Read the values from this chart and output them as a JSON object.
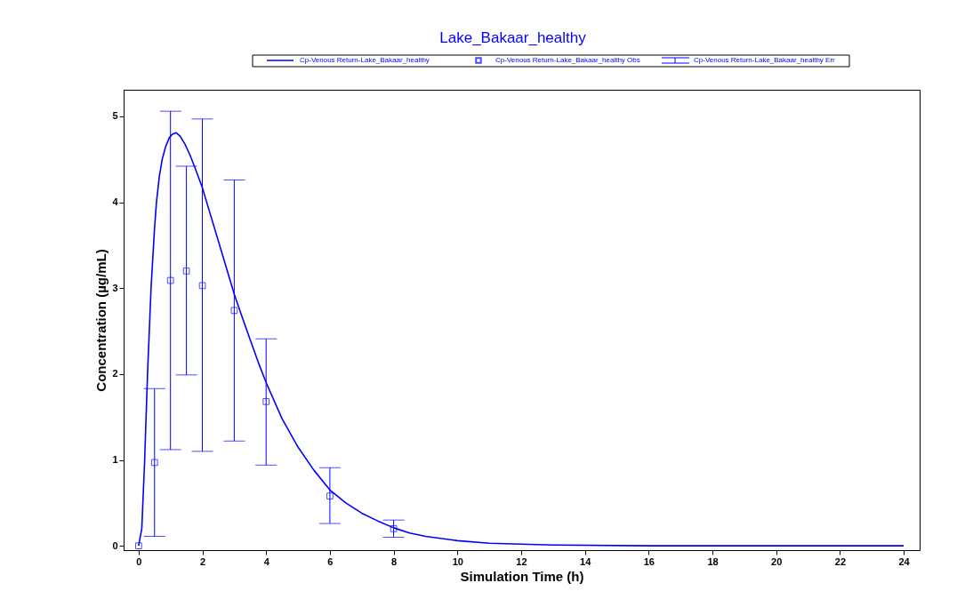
{
  "chart_data": {
    "type": "line",
    "title": "Lake_Bakaar_healthy",
    "xlabel": "Simulation Time (h)",
    "ylabel": "Concentration (µg/mL)",
    "xlim": [
      -0.47,
      24.5
    ],
    "ylim": [
      -0.05,
      5.31
    ],
    "xticks": [
      0,
      2,
      4,
      6,
      8,
      10,
      12,
      14,
      16,
      18,
      20,
      22,
      24
    ],
    "yticks": [
      0,
      1,
      2,
      3,
      4,
      5
    ],
    "grid": false,
    "legend": "top",
    "annotations": [
      "Cp-Venous Return-Lake_Bakaar_healthy Err"
    ],
    "series": [
      {
        "name": "Cp-Venous Return-Lake_Bakaar_healthy",
        "color": "#0000ff",
        "line_style": "solid",
        "marker": "none",
        "x": [
          0,
          0.1,
          0.19,
          0.28,
          0.39,
          0.5,
          0.56,
          0.65,
          0.74,
          0.85,
          0.96,
          1.05,
          1.18,
          1.3,
          1.45,
          1.6,
          1.75,
          2,
          2.25,
          2.5,
          2.75,
          3,
          3.25,
          3.5,
          3.75,
          4,
          4.5,
          5,
          5.5,
          6,
          6.5,
          7,
          7.5,
          8,
          8.5,
          9,
          10,
          11,
          12,
          13,
          16,
          20,
          24
        ],
        "values": [
          0,
          0.2,
          1.0,
          2.0,
          3.0,
          3.7,
          4.0,
          4.3,
          4.5,
          4.65,
          4.75,
          4.79,
          4.81,
          4.77,
          4.68,
          4.56,
          4.42,
          4.17,
          3.86,
          3.55,
          3.24,
          2.93,
          2.66,
          2.4,
          2.14,
          1.9,
          1.48,
          1.15,
          0.88,
          0.65,
          0.5,
          0.38,
          0.29,
          0.21,
          0.15,
          0.11,
          0.06,
          0.03,
          0.02,
          0.01,
          0,
          0,
          0
        ]
      },
      {
        "name": "Cp-Venous Return-Lake_Bakaar_healthy Obs",
        "type": "scatter",
        "color": "#0000ff",
        "marker": "square",
        "x": [
          0,
          0.5,
          1,
          1.5,
          2,
          3,
          4,
          6,
          8
        ],
        "values": [
          0,
          0.97,
          3.09,
          3.2,
          3.03,
          2.74,
          1.68,
          0.58,
          0.2
        ],
        "errors": [
          null,
          [
            0.11,
            1.83
          ],
          [
            1.12,
            5.06
          ],
          [
            1.99,
            4.42
          ],
          [
            1.1,
            4.97
          ],
          [
            1.22,
            4.26
          ],
          [
            0.94,
            2.41
          ],
          [
            0.26,
            0.91
          ],
          [
            0.1,
            0.3
          ]
        ]
      }
    ]
  }
}
